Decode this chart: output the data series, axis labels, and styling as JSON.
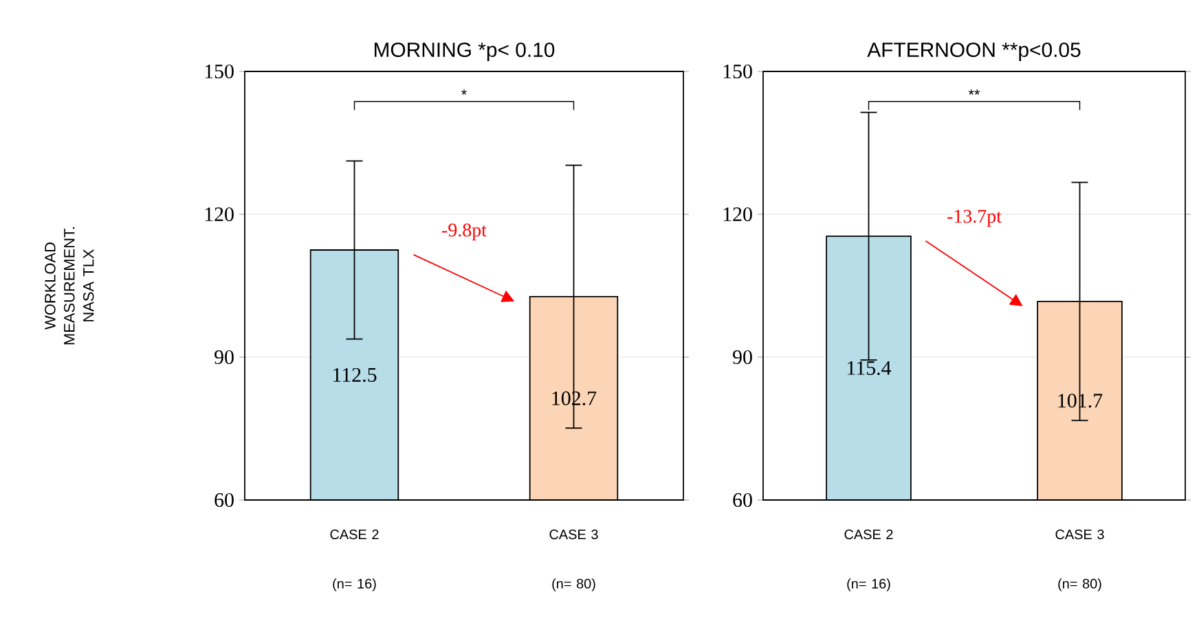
{
  "chart_data": [
    {
      "type": "bar",
      "title": "MORNING *p< 0.10",
      "ylabel": "WORKLOAD MEASUREMENT. NASA TLX",
      "categories": [
        "CASE 2 (n= 16)",
        "CASE 3 (n= 80)"
      ],
      "values": [
        112.5,
        102.7
      ],
      "colors": [
        "#b7dde8",
        "#fbd5b5"
      ],
      "errors": [
        18.7,
        27.6
      ],
      "ylim": [
        60,
        150
      ],
      "yticks": [
        60,
        90,
        120,
        150
      ],
      "grid": "y",
      "data_labels": true,
      "annotations": [
        "*",
        "-9.8pt"
      ]
    },
    {
      "type": "bar",
      "title": "AFTERNOON **p<0.05",
      "categories": [
        "CASE 2 (n= 16)",
        "CASE 3 (n= 80)"
      ],
      "values": [
        115.4,
        101.7
      ],
      "colors": [
        "#b7dde8",
        "#fbd5b5"
      ],
      "errors": [
        26.0,
        25.0
      ],
      "ylim": [
        60,
        150
      ],
      "yticks": [
        60,
        90,
        120,
        150
      ],
      "grid": "y",
      "data_labels": true,
      "annotations": [
        "**",
        "-13.7pt"
      ]
    }
  ]
}
